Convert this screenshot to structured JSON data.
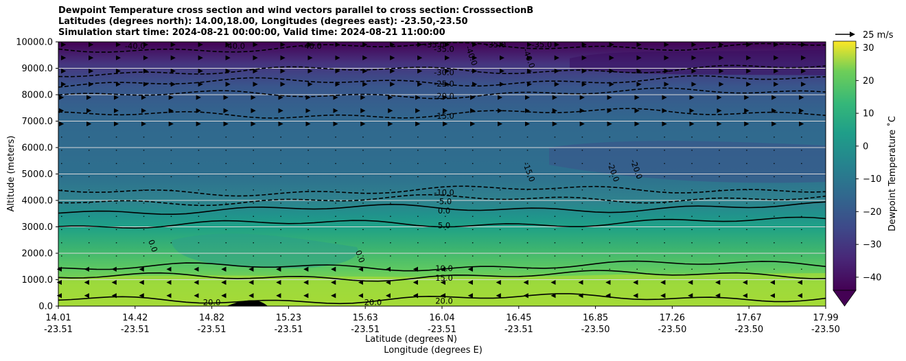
{
  "chart_data": {
    "type": "heatmap",
    "subtype": "filled-contour cross-section with contour lines and wind vectors",
    "title": {
      "line1": "Dewpoint Temperature cross section and wind vectors parallel to cross section: CrosssectionB",
      "line2": "Latitudes (degrees north): 14.00,18.00, Longitudes (degrees east): -23.50,-23.50",
      "line3": "Simulation start time: 2024-08-21 00:00:00, Valid time: 2024-08-21 11:00:00"
    },
    "ylabel": "Altitude (meters)",
    "xlabel_lat": "Latitude (degrees N)",
    "xlabel_lon": "Longitude (degrees E)",
    "ylim": [
      0,
      10000
    ],
    "yticks": [
      "0.0",
      "1000.0",
      "2000.0",
      "3000.0",
      "4000.0",
      "5000.0",
      "6000.0",
      "7000.0",
      "8000.0",
      "9000.0",
      "10000.0"
    ],
    "ytick_values": [
      0,
      1000,
      2000,
      3000,
      4000,
      5000,
      6000,
      7000,
      8000,
      9000,
      10000
    ],
    "xticks": [
      {
        "lat": "14.01",
        "lon": "-23.51",
        "frac": 0.0
      },
      {
        "lat": "14.42",
        "lon": "-23.51",
        "frac": 0.1
      },
      {
        "lat": "14.82",
        "lon": "-23.51",
        "frac": 0.2
      },
      {
        "lat": "15.23",
        "lon": "-23.51",
        "frac": 0.3
      },
      {
        "lat": "15.63",
        "lon": "-23.51",
        "frac": 0.4
      },
      {
        "lat": "16.04",
        "lon": "-23.51",
        "frac": 0.5
      },
      {
        "lat": "16.45",
        "lon": "-23.51",
        "frac": 0.6
      },
      {
        "lat": "16.85",
        "lon": "-23.50",
        "frac": 0.7
      },
      {
        "lat": "17.26",
        "lon": "-23.50",
        "frac": 0.8
      },
      {
        "lat": "17.67",
        "lon": "-23.50",
        "frac": 0.9
      },
      {
        "lat": "17.99",
        "lon": "-23.50",
        "frac": 1.0
      }
    ],
    "grid": "horizontal",
    "colorbar": {
      "label": "Dewpoint Temperature ˚C",
      "colormap": "viridis",
      "range": [
        -44,
        32
      ],
      "ticks": [
        "30",
        "20",
        "10",
        "0",
        "−10",
        "−20",
        "−30",
        "−40"
      ],
      "tick_values": [
        30,
        20,
        10,
        0,
        -10,
        -20,
        -30,
        -40
      ],
      "extend": "min"
    },
    "quiver_key": "25 m/s",
    "contour_levels_at_section_center": [
      {
        "label": "-35.0",
        "alt": 9730
      },
      {
        "label": "-30.0",
        "alt": 8850
      },
      {
        "label": "-25.0",
        "alt": 8420
      },
      {
        "label": "-20.0",
        "alt": 7950
      },
      {
        "label": "-15.0",
        "alt": 7200
      },
      {
        "label": "-10.0",
        "alt": 4300
      },
      {
        "label": "-5.0",
        "alt": 3960
      },
      {
        "label": "0.0",
        "alt": 3610
      },
      {
        "label": "5.0",
        "alt": 3050
      },
      {
        "label": "10.0",
        "alt": 1430
      },
      {
        "label": "15.0",
        "alt": 1060
      },
      {
        "label": "20.0",
        "alt": 200
      }
    ],
    "extra_contour_labels": [
      "-40.0",
      "-40.0",
      "-40.0",
      "-35.0",
      "-35.0",
      "-35.0",
      "-40.0",
      "-40.0",
      "-15.0",
      "-20.0",
      "-20.0",
      "0.0",
      "0.0",
      "20.0",
      "20.0"
    ]
  }
}
